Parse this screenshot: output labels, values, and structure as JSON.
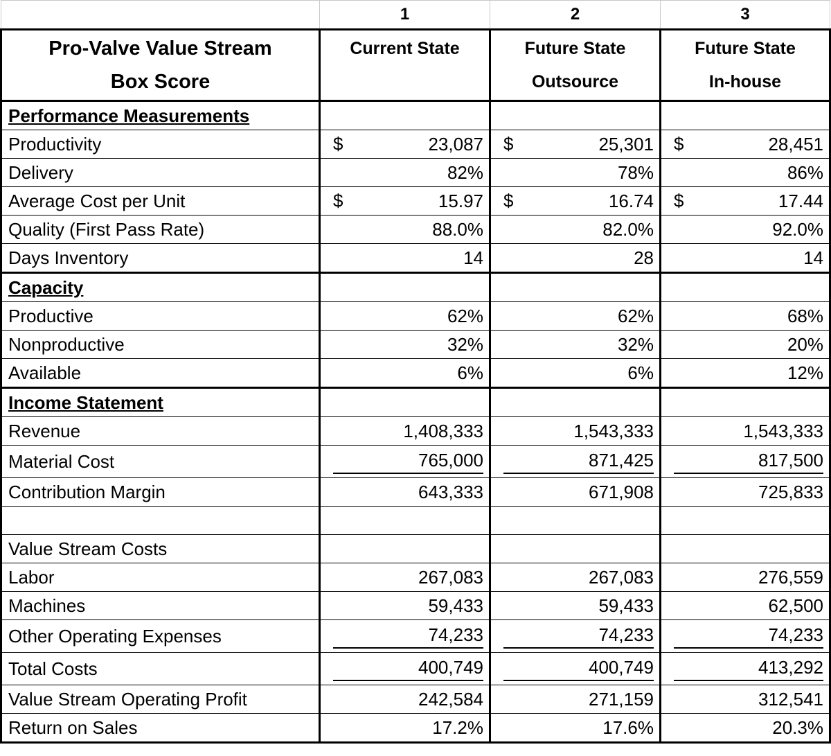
{
  "columns": {
    "numbers": [
      "1",
      "2",
      "3"
    ],
    "title_lines": [
      "Pro-Valve Value Stream",
      "Box Score"
    ],
    "headers": [
      {
        "line1": "Current State",
        "line2": ""
      },
      {
        "line1": "Future State",
        "line2": "Outsource"
      },
      {
        "line1": "Future State",
        "line2": "In-house"
      }
    ]
  },
  "sections": {
    "performance": "Performance Measurements",
    "capacity": "Capacity",
    "income": "Income Statement"
  },
  "rows": {
    "productivity": {
      "label": "Productivity",
      "currency": "$",
      "values": [
        "23,087",
        "25,301",
        "28,451"
      ]
    },
    "delivery": {
      "label": "Delivery",
      "values": [
        "82%",
        "78%",
        "86%"
      ]
    },
    "avg_cost": {
      "label": "Average Cost per Unit",
      "currency": "$",
      "values": [
        "15.97",
        "16.74",
        "17.44"
      ]
    },
    "quality": {
      "label": "Quality (First Pass Rate)",
      "values": [
        "88.0%",
        "82.0%",
        "92.0%"
      ]
    },
    "days_inventory": {
      "label": "Days Inventory",
      "values": [
        "14",
        "28",
        "14"
      ]
    },
    "productive": {
      "label": "Productive",
      "values": [
        "62%",
        "62%",
        "68%"
      ]
    },
    "nonproductive": {
      "label": "Nonproductive",
      "values": [
        "32%",
        "32%",
        "20%"
      ]
    },
    "available": {
      "label": "Available",
      "values": [
        "6%",
        "6%",
        "12%"
      ]
    },
    "revenue": {
      "label": "Revenue",
      "values": [
        "1,408,333",
        "1,543,333",
        "1,543,333"
      ]
    },
    "material_cost": {
      "label": "Material Cost",
      "values": [
        "765,000",
        "871,425",
        "817,500"
      ]
    },
    "contribution_margin": {
      "label": "Contribution Margin",
      "values": [
        "643,333",
        "671,908",
        "725,833"
      ]
    },
    "vs_costs": {
      "label": "Value Stream Costs"
    },
    "labor": {
      "label": "Labor",
      "values": [
        "267,083",
        "267,083",
        "276,559"
      ]
    },
    "machines": {
      "label": "Machines",
      "values": [
        "59,433",
        "59,433",
        "62,500"
      ]
    },
    "other_opex": {
      "label": "Other Operating Expenses",
      "values": [
        "74,233",
        "74,233",
        "74,233"
      ]
    },
    "total_costs": {
      "label": "Total Costs",
      "values": [
        "400,749",
        "400,749",
        "413,292"
      ]
    },
    "operating_profit": {
      "label": "Value Stream Operating Profit",
      "values": [
        "242,584",
        "271,159",
        "312,541"
      ]
    },
    "return_on_sales": {
      "label": "Return on Sales",
      "values": [
        "17.2%",
        "17.6%",
        "20.3%"
      ]
    }
  }
}
